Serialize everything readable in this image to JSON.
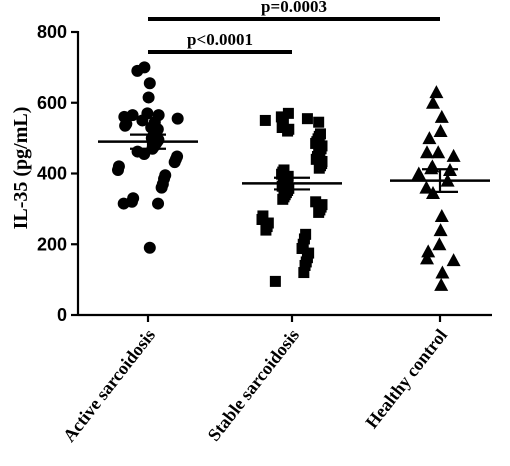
{
  "chart_data": {
    "type": "scatter",
    "ylabel": "IL-35 (pg/mL)",
    "ylim": [
      0,
      800
    ],
    "yticks": [
      0,
      200,
      400,
      600,
      800
    ],
    "categories": [
      "Active sarcoidosis",
      "Stable sarcoidosis",
      "Healthy control"
    ],
    "series": [
      {
        "category": "Active sarcoidosis",
        "marker": "circle",
        "mean": 490,
        "sem": [
          470,
          510
        ],
        "values": [
          700,
          690,
          655,
          615,
          570,
          565,
          565,
          560,
          555,
          550,
          545,
          540,
          535,
          530,
          525,
          520,
          515,
          510,
          505,
          500,
          495,
          490,
          485,
          480,
          475,
          470,
          462,
          455,
          448,
          440,
          432,
          420,
          410,
          395,
          385,
          370,
          360,
          330,
          320,
          315,
          315,
          190
        ]
      },
      {
        "category": "Stable sarcoidosis",
        "marker": "square",
        "mean": 372,
        "sem": [
          355,
          388
        ],
        "values": [
          570,
          560,
          555,
          550,
          545,
          540,
          530,
          525,
          520,
          512,
          505,
          498,
          490,
          485,
          478,
          470,
          462,
          455,
          448,
          440,
          434,
          428,
          422,
          415,
          410,
          404,
          398,
          392,
          386,
          380,
          375,
          370,
          364,
          358,
          352,
          346,
          340,
          334,
          327,
          320,
          312,
          305,
          297,
          290,
          280,
          270,
          260,
          250,
          240,
          228,
          215,
          200,
          188,
          175,
          162,
          150,
          140,
          120,
          95
        ]
      },
      {
        "category": "Healthy control",
        "marker": "triangle",
        "mean": 380,
        "sem": [
          348,
          412
        ],
        "values": [
          630,
          600,
          560,
          520,
          500,
          460,
          460,
          450,
          420,
          415,
          410,
          400,
          380,
          360,
          345,
          280,
          240,
          200,
          180,
          160,
          155,
          120,
          85
        ]
      }
    ],
    "annotations": [
      {
        "text": "p<0.0001",
        "from": "Active sarcoidosis",
        "to": "Stable sarcoidosis"
      },
      {
        "text": "p=0.0003",
        "from": "Active sarcoidosis",
        "to": "Healthy control"
      }
    ]
  }
}
